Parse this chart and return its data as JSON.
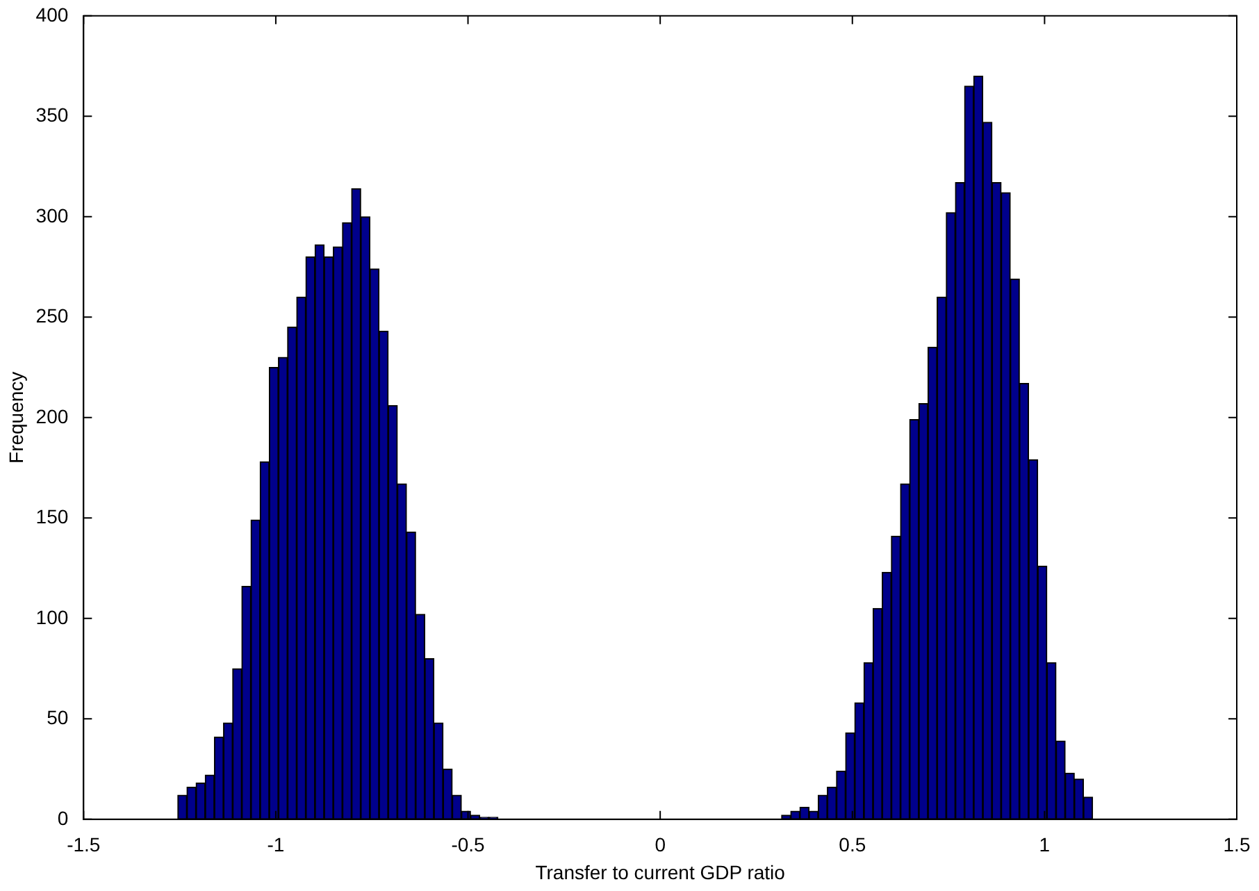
{
  "chart_data": {
    "type": "histogram",
    "xlabel": "Transfer to current GDP ratio",
    "ylabel": "Frequency",
    "color": "#00008b",
    "bins": [
      -1.255,
      -1.2312,
      -1.2074,
      -1.1836,
      -1.1598,
      -1.136,
      -1.1122,
      -1.0884,
      -1.0646,
      -1.0408,
      -1.017,
      -0.9932,
      -0.9694,
      -0.9456,
      -0.9218,
      -0.898,
      -0.8742,
      -0.8504,
      -0.8266,
      -0.8028,
      -0.779,
      -0.7552,
      -0.7314,
      -0.7076,
      -0.6838,
      -0.66,
      -0.6362,
      -0.6124,
      -0.5886,
      -0.5648,
      -0.541,
      -0.5172,
      -0.4934,
      -0.4696,
      -0.4458,
      -0.422,
      -0.3982,
      -0.3744,
      -0.3506,
      -0.3268,
      -0.303,
      -0.2792,
      -0.2554,
      -0.2316,
      -0.2078,
      -0.184,
      -0.1602,
      -0.1364,
      -0.1126,
      -0.0888,
      -0.065,
      -0.0412,
      -0.0174,
      0.0064,
      0.0302,
      0.054,
      0.0778,
      0.1016,
      0.1254,
      0.1492,
      0.173,
      0.1968,
      0.2206,
      0.2444,
      0.2682,
      0.292,
      0.3158,
      0.3396,
      0.3634,
      0.3872,
      0.411,
      0.4348,
      0.4586,
      0.4824,
      0.5062,
      0.53,
      0.5538,
      0.5776,
      0.6014,
      0.6252,
      0.649,
      0.6728,
      0.6966,
      0.7204,
      0.7442,
      0.768,
      0.7918,
      0.8156,
      0.8394,
      0.8632,
      0.887,
      0.9108,
      0.9346,
      0.9584,
      0.9822,
      1.006,
      1.0298,
      1.0536,
      1.0774,
      1.1012,
      1.125
    ],
    "values": [
      12,
      16,
      18,
      22,
      41,
      48,
      75,
      116,
      149,
      178,
      225,
      230,
      245,
      260,
      280,
      286,
      280,
      285,
      297,
      314,
      300,
      274,
      243,
      206,
      167,
      143,
      102,
      80,
      48,
      25,
      12,
      4,
      2,
      1,
      1,
      0,
      0,
      0,
      0,
      0,
      0,
      0,
      0,
      0,
      0,
      0,
      0,
      0,
      0,
      0,
      0,
      0,
      0,
      0,
      0,
      0,
      0,
      0,
      0,
      0,
      0,
      0,
      0,
      0,
      0,
      0,
      2,
      4,
      6,
      4,
      12,
      16,
      24,
      43,
      58,
      78,
      105,
      123,
      141,
      167,
      199,
      207,
      235,
      260,
      302,
      317,
      365,
      370,
      347,
      317,
      312,
      269,
      217,
      179,
      126,
      78,
      39,
      23,
      20,
      11
    ],
    "xlim": [
      -1.5,
      1.5
    ],
    "xticks": [
      -1.5,
      -1,
      -0.5,
      0,
      0.5,
      1,
      1.5
    ],
    "ylim": [
      0,
      400
    ],
    "yticks": [
      0,
      50,
      100,
      150,
      200,
      250,
      300,
      350,
      400
    ]
  }
}
